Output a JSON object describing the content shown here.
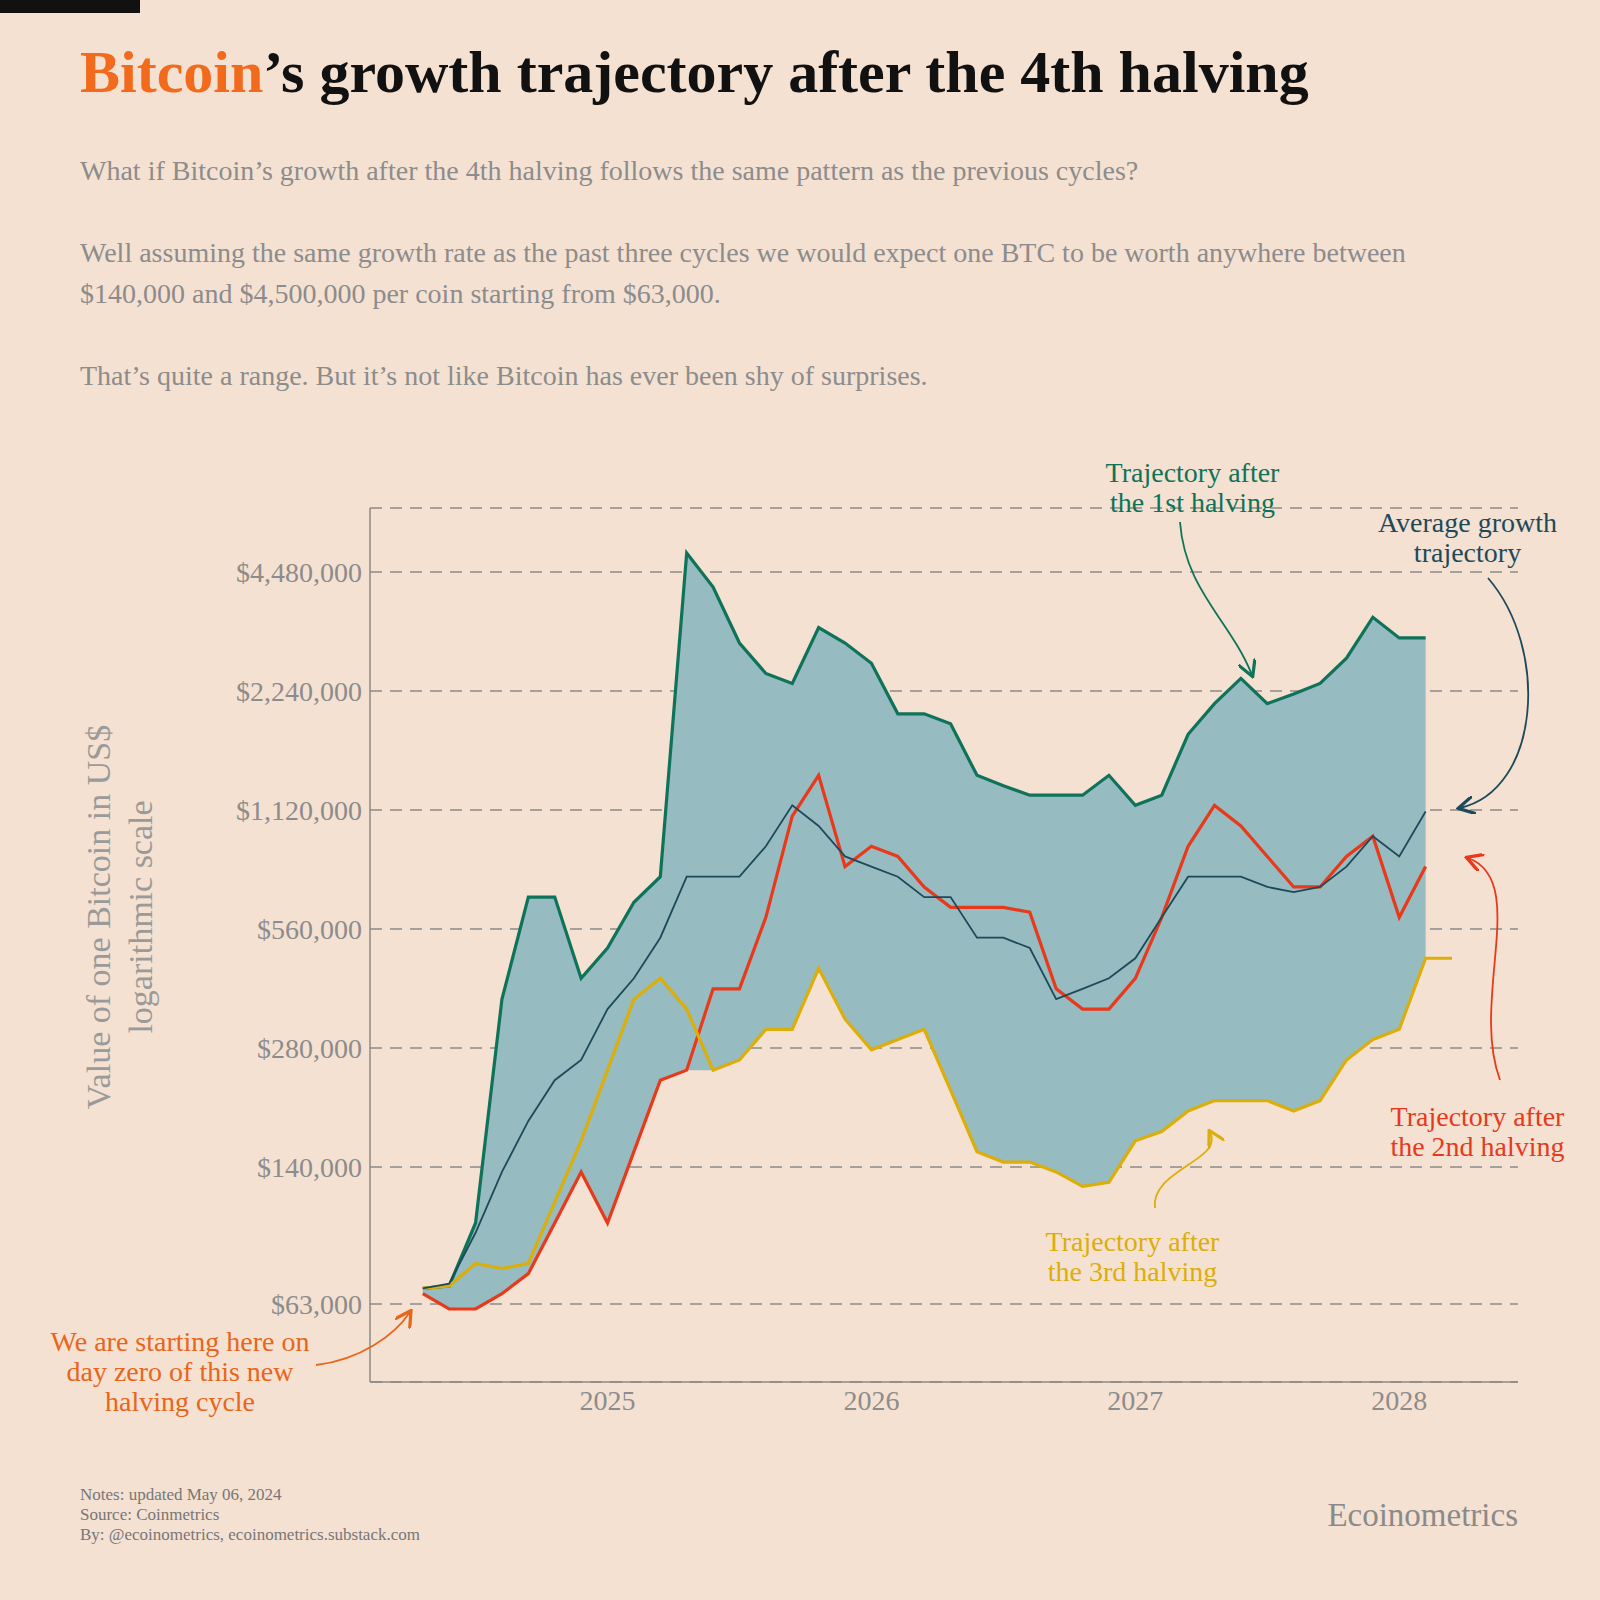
{
  "chart_data": {
    "type": "line",
    "title": "Bitcoin’s growth trajectory after the 4th halving",
    "subtitle": [
      "What if Bitcoin’s growth after the 4th halving follows the same pattern as the previous cycles?",
      "Well assuming the same growth rate as the past three cycles we would expect one BTC to be worth anywhere between $140,000 and $4,500,000 per coin starting from $63,000.",
      "That’s quite a range. But it’s not like Bitcoin has ever been shy of surprises."
    ],
    "y_label": [
      "Value of one Bitcoin in US$",
      "logarithmic scale"
    ],
    "annotations": [
      "We are starting here on day zero of this new halving cycle"
    ],
    "notes": [
      "Notes: updated May 06, 2024",
      "Source: Coinmetrics",
      "By: @ecoinometrics, ecoinometrics.substack.com"
    ],
    "brand": "Ecoinometrics",
    "log": "y",
    "grid": true,
    "xlim": [
      2024.1,
      2028.45
    ],
    "xticks": [
      2025,
      2026,
      2027,
      2028
    ],
    "ylim": [
      40000,
      6500000
    ],
    "yticks": [
      {
        "value": 63000,
        "label": "$63,000"
      },
      {
        "value": 140000,
        "label": "$140,000"
      },
      {
        "value": 280000,
        "label": "$280,000"
      },
      {
        "value": 560000,
        "label": "$560,000"
      },
      {
        "value": 1120000,
        "label": "$1,120,000"
      },
      {
        "value": 2240000,
        "label": "$2,240,000"
      },
      {
        "value": 4480000,
        "label": "$4,480,000"
      }
    ],
    "x": [
      2024.3,
      2024.4,
      2024.5,
      2024.6,
      2024.7,
      2024.8,
      2024.9,
      2025.0,
      2025.1,
      2025.2,
      2025.3,
      2025.4,
      2025.5,
      2025.6,
      2025.7,
      2025.8,
      2025.9,
      2026.0,
      2026.1,
      2026.2,
      2026.3,
      2026.4,
      2026.5,
      2026.6,
      2026.7,
      2026.8,
      2026.9,
      2027.0,
      2027.1,
      2027.2,
      2027.3,
      2027.4,
      2027.5,
      2027.6,
      2027.7,
      2027.8,
      2027.9,
      2028.0,
      2028.1,
      2028.2
    ],
    "series": [
      {
        "name": "Trajectory after the 1st halving",
        "color": "#0e7358",
        "values": [
          69000,
          70000,
          101000,
          372000,
          674000,
          674000,
          420000,
          501000,
          654000,
          759000,
          5000000,
          4100000,
          2960000,
          2480000,
          2340000,
          3240000,
          2960000,
          2630000,
          1960000,
          1960000,
          1850000,
          1370000,
          1290000,
          1220000,
          1220000,
          1220000,
          1370000,
          1150000,
          1220000,
          1740000,
          2080000,
          2410000,
          2080000,
          2200000,
          2340000,
          2710000,
          3440000,
          3050000,
          3050000,
          null
        ]
      },
      {
        "name": "Trajectory after the 2nd halving",
        "color": "#e8391a",
        "values": [
          66900,
          61200,
          61200,
          66900,
          75200,
          101000,
          136000,
          101000,
          153000,
          232000,
          246000,
          395000,
          395000,
          599000,
          1080000,
          1370000,
          805000,
          906000,
          854000,
          715000,
          635000,
          635000,
          635000,
          617000,
          395000,
          351000,
          351000,
          420000,
          599000,
          906000,
          1150000,
          1020000,
          854000,
          715000,
          715000,
          854000,
          961000,
          599000,
          805000,
          null
        ]
      },
      {
        "name": "Trajectory after the 3rd halving",
        "color": "#dbae0a",
        "values": [
          69000,
          70000,
          79800,
          77500,
          79800,
          114000,
          163000,
          246000,
          372000,
          420000,
          351000,
          246000,
          261000,
          312000,
          312000,
          445000,
          331000,
          277000,
          294000,
          312000,
          219000,
          153000,
          144000,
          144000,
          136000,
          125000,
          128000,
          163000,
          172000,
          194000,
          206000,
          206000,
          206000,
          194000,
          206000,
          261000,
          294000,
          312000,
          472000,
          472000
        ]
      },
      {
        "name": "Average growth trajectory",
        "color": "#1d4a5a",
        "values": [
          69000,
          70900,
          95400,
          136000,
          183000,
          232000,
          261000,
          351000,
          420000,
          532000,
          759000,
          759000,
          759000,
          906000,
          1150000,
          1020000,
          854000,
          805000,
          759000,
          674000,
          674000,
          532000,
          532000,
          501000,
          372000,
          395000,
          420000,
          472000,
          599000,
          759000,
          759000,
          759000,
          715000,
          694000,
          715000,
          805000,
          961000,
          854000,
          1110000,
          null
        ]
      }
    ]
  }
}
